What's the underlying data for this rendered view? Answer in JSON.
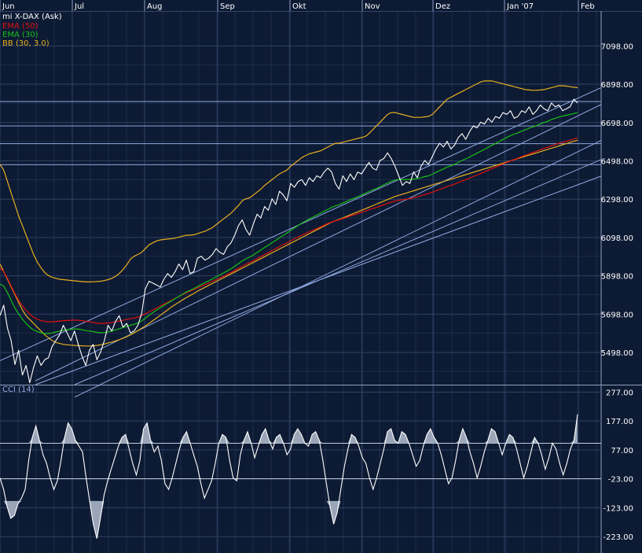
{
  "colors": {
    "background": "#0d1a33",
    "grid": "#2f4266",
    "price": "#ffffff",
    "ema50": "#e01010",
    "ema30": "#16c016",
    "bb": "#e8b020",
    "channel": "#8fa8e0",
    "cci": "#ffffff",
    "cci_fill": "#9aa6b8"
  },
  "chart_data": [
    {
      "type": "line",
      "title": "mi X-DAX (Ask)",
      "x_ticks": [
        "Jun",
        "Jul",
        "Aug",
        "Sep",
        "Okt",
        "Nov",
        "Dez",
        "Jan '07",
        "Feb"
      ],
      "y_ticks": [
        "7098.00",
        "6898.00",
        "6698.00",
        "6498.00",
        "6298.00",
        "6098.00",
        "5898.00",
        "5698.00",
        "5498.00"
      ],
      "ylim": [
        5330,
        7280
      ],
      "grid": true,
      "legend": "top-left",
      "horizontal_levels": [
        6808,
        6680,
        6588,
        6478
      ],
      "channel_lines": [
        {
          "start": [
            0,
            5455
          ],
          "end": [
            155,
            6880
          ]
        },
        {
          "start": [
            90,
            5350
          ],
          "end": [
            155,
            6792
          ]
        },
        {
          "start": [
            90,
            5262
          ],
          "end": [
            155,
            6605
          ]
        },
        {
          "start": [
            90,
            5175
          ],
          "end": [
            155,
            6505
          ]
        },
        {
          "start": [
            155,
            6418
          ],
          "end": [
            155,
            6418
          ]
        }
      ],
      "series": [
        {
          "name": "mi X-DAX (Ask)",
          "key": "price",
          "values": [
            5690,
            5745,
            5625,
            5560,
            5435,
            5510,
            5380,
            5430,
            5340,
            5420,
            5480,
            5430,
            5460,
            5470,
            5530,
            5560,
            5590,
            5640,
            5600,
            5560,
            5610,
            5540,
            5480,
            5430,
            5510,
            5540,
            5460,
            5500,
            5560,
            5640,
            5610,
            5660,
            5690,
            5630,
            5650,
            5600,
            5610,
            5640,
            5700,
            5830,
            5870,
            5860,
            5850,
            5840,
            5880,
            5910,
            5890,
            5920,
            5960,
            5930,
            5980,
            5910,
            5920,
            5990,
            6000,
            5980,
            5990,
            6010,
            6040,
            6020,
            6010,
            6050,
            6070,
            6110,
            6160,
            6190,
            6140,
            6110,
            6170,
            6220,
            6200,
            6260,
            6240,
            6300,
            6270,
            6340,
            6320,
            6290,
            6380,
            6360,
            6390,
            6400,
            6370,
            6410,
            6390,
            6420,
            6410,
            6440,
            6460,
            6440,
            6380,
            6350,
            6420,
            6390,
            6430,
            6400,
            6440,
            6430,
            6460,
            6490,
            6460,
            6450,
            6500,
            6510,
            6540,
            6510,
            6470,
            6420,
            6370,
            6390,
            6380,
            6440,
            6410,
            6470,
            6500,
            6480,
            6520,
            6560,
            6590,
            6570,
            6600,
            6560,
            6580,
            6620,
            6640,
            6610,
            6650,
            6680,
            6670,
            6700,
            6690,
            6720,
            6700,
            6730,
            6720,
            6750,
            6740,
            6760,
            6720,
            6730,
            6760,
            6750,
            6780,
            6740,
            6760,
            6790,
            6770,
            6760,
            6800,
            6780,
            6790,
            6760,
            6770,
            6780,
            6820,
            6800
          ]
        },
        {
          "name": "EMA (50)",
          "key": "ema50",
          "values": [
            5940,
            5920,
            5885,
            5845,
            5805,
            5770,
            5742,
            5718,
            5698,
            5682,
            5672,
            5665,
            5660,
            5658,
            5658,
            5660,
            5662,
            5664,
            5665,
            5666,
            5667,
            5666,
            5664,
            5660,
            5658,
            5655,
            5652,
            5650,
            5650,
            5652,
            5654,
            5658,
            5662,
            5666,
            5670,
            5674,
            5678,
            5683,
            5690,
            5700,
            5710,
            5720,
            5730,
            5740,
            5750,
            5760,
            5770,
            5780,
            5790,
            5800,
            5810,
            5818,
            5826,
            5835,
            5843,
            5852,
            5860,
            5869,
            5878,
            5887,
            5895,
            5905,
            5915,
            5926,
            5937,
            5948,
            5958,
            5967,
            5977,
            5988,
            5998,
            6009,
            6019,
            6030,
            6040,
            6051,
            6061,
            6070,
            6081,
            6091,
            6101,
            6110,
            6119,
            6128,
            6136,
            6145,
            6153,
            6162,
            6171,
            6179,
            6185,
            6190,
            6197,
            6203,
            6210,
            6216,
            6223,
            6229,
            6236,
            6243,
            6249,
            6255,
            6262,
            6269,
            6276,
            6283,
            6288,
            6292,
            6295,
            6298,
            6301,
            6306,
            6310,
            6316,
            6322,
            6328,
            6334,
            6341,
            6349,
            6356,
            6364,
            6370,
            6377,
            6385,
            6393,
            6400,
            6408,
            6416,
            6424,
            6432,
            6440,
            6449,
            6457,
            6465,
            6473,
            6482,
            6490,
            6498,
            6505,
            6512,
            6520,
            6527,
            6535,
            6541,
            6548,
            6556,
            6563,
            6569,
            6577,
            6583,
            6590,
            6595,
            6600,
            6606,
            6612,
            6618
          ]
        },
        {
          "name": "EMA (30)",
          "key": "ema30",
          "values": [
            5855,
            5845,
            5810,
            5770,
            5730,
            5700,
            5672,
            5650,
            5630,
            5615,
            5607,
            5600,
            5597,
            5597,
            5600,
            5605,
            5610,
            5614,
            5617,
            5619,
            5621,
            5620,
            5617,
            5612,
            5610,
            5607,
            5603,
            5601,
            5602,
            5606,
            5610,
            5616,
            5622,
            5628,
            5634,
            5640,
            5645,
            5652,
            5662,
            5677,
            5692,
            5706,
            5719,
            5731,
            5744,
            5756,
            5767,
            5779,
            5791,
            5802,
            5814,
            5822,
            5831,
            5842,
            5852,
            5862,
            5872,
            5882,
            5892,
            5903,
            5913,
            5924,
            5935,
            5948,
            5962,
            5976,
            5987,
            5996,
            6007,
            6020,
            6032,
            6046,
            6058,
            6071,
            6083,
            6097,
            6109,
            6121,
            6135,
            6148,
            6161,
            6173,
            6184,
            6195,
            6205,
            6215,
            6225,
            6235,
            6245,
            6255,
            6263,
            6269,
            6278,
            6286,
            6295,
            6302,
            6311,
            6319,
            6328,
            6338,
            6346,
            6353,
            6363,
            6373,
            6383,
            6391,
            6398,
            6400,
            6400,
            6401,
            6400,
            6403,
            6405,
            6410,
            6416,
            6420,
            6428,
            6437,
            6447,
            6456,
            6466,
            6472,
            6480,
            6490,
            6500,
            6508,
            6518,
            6528,
            6538,
            6548,
            6558,
            6569,
            6579,
            6589,
            6599,
            6610,
            6620,
            6630,
            6637,
            6644,
            6653,
            6660,
            6669,
            6675,
            6682,
            6691,
            6698,
            6705,
            6714,
            6720,
            6727,
            6732,
            6736,
            6740,
            6745,
            6750
          ]
        },
        {
          "name": "BB (30, 3.0)",
          "key": "bb_upper",
          "values": [
            6480,
            6450,
            6390,
            6330,
            6270,
            6210,
            6160,
            6110,
            6060,
            6010,
            5970,
            5940,
            5915,
            5900,
            5890,
            5885,
            5880,
            5878,
            5876,
            5874,
            5872,
            5870,
            5868,
            5866,
            5866,
            5867,
            5868,
            5870,
            5873,
            5878,
            5885,
            5895,
            5910,
            5930,
            5955,
            5985,
            6000,
            6010,
            6020,
            6040,
            6060,
            6070,
            6080,
            6085,
            6088,
            6090,
            6092,
            6095,
            6100,
            6105,
            6110,
            6110,
            6112,
            6118,
            6125,
            6130,
            6140,
            6150,
            6165,
            6180,
            6195,
            6210,
            6225,
            6245,
            6265,
            6290,
            6300,
            6305,
            6320,
            6335,
            6350,
            6370,
            6385,
            6400,
            6415,
            6430,
            6440,
            6450,
            6470,
            6485,
            6500,
            6515,
            6525,
            6535,
            6540,
            6545,
            6550,
            6560,
            6570,
            6580,
            6590,
            6590,
            6595,
            6600,
            6605,
            6610,
            6615,
            6620,
            6625,
            6640,
            6660,
            6680,
            6700,
            6720,
            6740,
            6750,
            6750,
            6745,
            6740,
            6735,
            6730,
            6725,
            6725,
            6725,
            6728,
            6730,
            6740,
            6760,
            6780,
            6800,
            6820,
            6830,
            6840,
            6850,
            6860,
            6870,
            6880,
            6890,
            6900,
            6910,
            6915,
            6915,
            6915,
            6910,
            6905,
            6900,
            6895,
            6890,
            6885,
            6880,
            6875,
            6870,
            6868,
            6866,
            6866,
            6868,
            6870,
            6875,
            6880,
            6885,
            6890,
            6890,
            6888,
            6885,
            6882,
            6880
          ]
        },
        {
          "name": "BB (30, 3.0) lower",
          "key": "bb_lower",
          "values": [
            5960,
            5920,
            5880,
            5840,
            5800,
            5760,
            5720,
            5690,
            5670,
            5650,
            5630,
            5610,
            5590,
            5575,
            5560,
            5550,
            5545,
            5540,
            5538,
            5536,
            5535,
            5534,
            5533,
            5532,
            5532,
            5533,
            5535,
            5538,
            5542,
            5548,
            5552,
            5558,
            5565,
            5572,
            5580,
            5590,
            5600,
            5612,
            5624,
            5636,
            5650,
            5664,
            5678,
            5692,
            5706,
            5720,
            5735,
            5748,
            5760,
            5772,
            5784,
            5795,
            5806,
            5818,
            5828,
            5838,
            5848,
            5858,
            5868,
            5878,
            5888,
            5898,
            5908,
            5918,
            5928,
            5938,
            5948,
            5958,
            5968,
            5978,
            5988,
            5998,
            6008,
            6018,
            6028,
            6038,
            6048,
            6058,
            6068,
            6078,
            6088,
            6098,
            6108,
            6118,
            6128,
            6138,
            6148,
            6158,
            6168,
            6178,
            6186,
            6192,
            6200,
            6208,
            6216,
            6224,
            6232,
            6240,
            6248,
            6256,
            6264,
            6272,
            6280,
            6288,
            6296,
            6304,
            6312,
            6318,
            6324,
            6330,
            6336,
            6342,
            6348,
            6354,
            6360,
            6366,
            6372,
            6378,
            6384,
            6390,
            6396,
            6402,
            6408,
            6414,
            6420,
            6426,
            6432,
            6438,
            6444,
            6450,
            6456,
            6462,
            6468,
            6474,
            6480,
            6486,
            6492,
            6498,
            6504,
            6510,
            6516,
            6522,
            6528,
            6534,
            6540,
            6546,
            6552,
            6558,
            6564,
            6570,
            6576,
            6582,
            6588,
            6594,
            6600,
            6606
          ]
        }
      ]
    },
    {
      "type": "area",
      "title": "CCI (14)",
      "y_ticks": [
        "277.00",
        "177.00",
        "77.00",
        "-23.00",
        "-123.00",
        "-223.00"
      ],
      "ylim": [
        -280,
        300
      ],
      "grid": true,
      "reference_levels": [
        100,
        -23
      ],
      "series": [
        {
          "name": "CCI (14)",
          "key": "cci",
          "values": [
            -20,
            -60,
            -120,
            -160,
            -150,
            -110,
            -90,
            -60,
            40,
            120,
            160,
            110,
            60,
            30,
            -20,
            -60,
            -30,
            40,
            120,
            170,
            150,
            110,
            90,
            70,
            -20,
            -100,
            -180,
            -230,
            -160,
            -80,
            -30,
            10,
            50,
            90,
            120,
            130,
            80,
            30,
            -10,
            40,
            150,
            170,
            110,
            70,
            90,
            40,
            -40,
            -60,
            -20,
            30,
            80,
            120,
            140,
            100,
            60,
            20,
            -40,
            -90,
            -60,
            -30,
            30,
            100,
            130,
            120,
            40,
            -20,
            -30,
            60,
            110,
            140,
            100,
            50,
            90,
            130,
            150,
            110,
            80,
            120,
            130,
            100,
            60,
            80,
            130,
            150,
            130,
            100,
            90,
            130,
            140,
            110,
            40,
            -40,
            -120,
            -180,
            -140,
            -60,
            20,
            80,
            130,
            120,
            90,
            50,
            30,
            -20,
            -60,
            -20,
            30,
            80,
            140,
            150,
            110,
            100,
            140,
            130,
            100,
            60,
            20,
            40,
            90,
            130,
            150,
            120,
            100,
            60,
            10,
            -40,
            -20,
            40,
            110,
            150,
            120,
            70,
            30,
            -20,
            20,
            70,
            110,
            150,
            140,
            100,
            60,
            100,
            130,
            120,
            80,
            30,
            -20,
            20,
            70,
            120,
            100,
            60,
            10,
            50,
            100,
            80,
            30,
            -10,
            30,
            80,
            110,
            200
          ]
        }
      ]
    }
  ]
}
